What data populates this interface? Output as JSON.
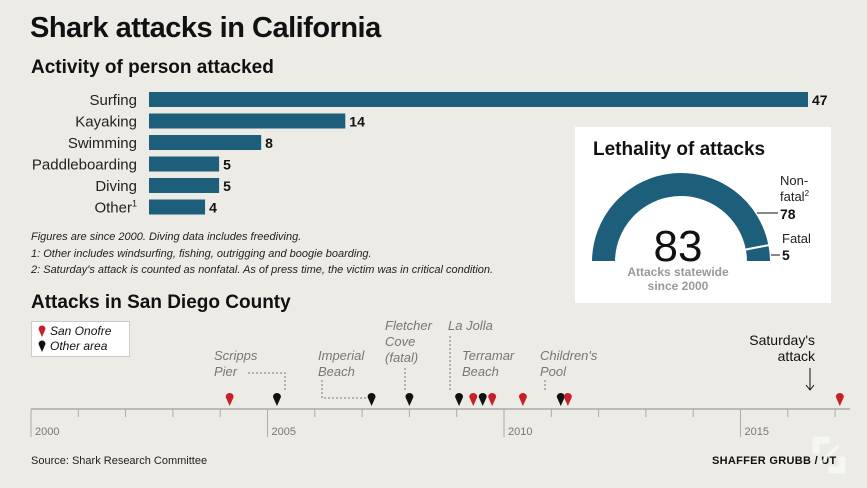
{
  "title": "Shark attacks in California",
  "activity": {
    "subtitle": "Activity of person attacked",
    "notes": [
      "Figures are since 2000. Diving data includes freediving.",
      "1: Other includes windsurfing, fishing, outrigging and boogie boarding.",
      "2: Saturday's attack is counted as nonfatal. As of press time, the victim was in critical condition."
    ]
  },
  "lethality": {
    "title": "Lethality of attacks",
    "total": "83",
    "total_caption_line1": "Attacks statewide",
    "total_caption_line2": "since 2000",
    "nonfatal_label_line1": "Non-",
    "nonfatal_label_line2": "fatal",
    "nonfatal_sup": "2",
    "fatal_label": "Fatal"
  },
  "san_diego": {
    "subtitle": "Attacks in San Diego County",
    "legend": [
      {
        "label": "San Onofre",
        "color": "#c8202b"
      },
      {
        "label": "Other area",
        "color": "#111111"
      }
    ]
  },
  "source": "Source: Shark Research Committee",
  "credit": "SHAFFER GRUBB / UT",
  "chart_data": [
    {
      "type": "bar",
      "orientation": "horizontal",
      "title": "Activity of person attacked",
      "categories": [
        "Surfing",
        "Kayaking",
        "Swimming",
        "Paddleboarding",
        "Diving",
        "Other"
      ],
      "category_sup": [
        "",
        "",
        "",
        "",
        "",
        "1"
      ],
      "values": [
        47,
        14,
        8,
        5,
        5,
        4
      ],
      "color": "#1d5e7a"
    },
    {
      "type": "pie",
      "title": "Lethality of attacks",
      "categories": [
        "Non-fatal",
        "Fatal"
      ],
      "values": [
        78,
        5
      ],
      "colors": [
        "#1d5e7a",
        "#1d5e7a"
      ],
      "total": 83
    },
    {
      "type": "scatter",
      "title": "Attacks in San Diego County",
      "x_axis_ticks": [
        "2000",
        "2005",
        "2010",
        "2015"
      ],
      "xlim": [
        2000,
        2017.5
      ],
      "points": [
        {
          "x": 2004.2,
          "area": "San Onofre"
        },
        {
          "x": 2005.2,
          "area": "Other area"
        },
        {
          "x": 2007.2,
          "area": "Other area"
        },
        {
          "x": 2008.0,
          "area": "Other area"
        },
        {
          "x": 2009.05,
          "area": "Other area"
        },
        {
          "x": 2009.35,
          "area": "San Onofre"
        },
        {
          "x": 2009.55,
          "area": "Other area"
        },
        {
          "x": 2009.75,
          "area": "San Onofre"
        },
        {
          "x": 2010.4,
          "area": "San Onofre"
        },
        {
          "x": 2011.2,
          "area": "Other area"
        },
        {
          "x": 2011.35,
          "area": "San Onofre"
        },
        {
          "x": 2017.1,
          "area": "San Onofre"
        }
      ],
      "annotations": [
        {
          "text": [
            "Scripps",
            "Pier"
          ],
          "x": 2005.2
        },
        {
          "text": [
            "Imperial",
            "Beach"
          ],
          "x": 2007.2
        },
        {
          "text": [
            "Fletcher",
            "Cove",
            "(fatal)"
          ],
          "x": 2008.0
        },
        {
          "text": [
            "La Jolla"
          ],
          "x": 2009.05
        },
        {
          "text": [
            "Terramar",
            "Beach"
          ],
          "x": 2009.55
        },
        {
          "text": [
            "Children's",
            "Pool"
          ],
          "x": 2011.2
        },
        {
          "text": [
            "Saturday's",
            "attack"
          ],
          "x": 2017.1
        }
      ]
    }
  ]
}
